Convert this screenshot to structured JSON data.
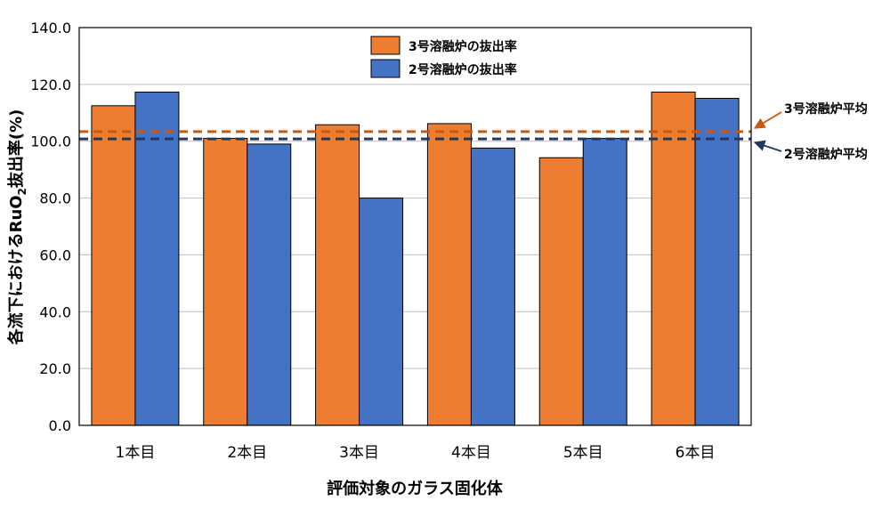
{
  "chart_data": {
    "type": "bar",
    "title": "",
    "xlabel": "評価対象のガラス固化体",
    "ylabel_parts": {
      "before": "各流下におけるRuO",
      "subscript": "2",
      "after": "抜出率(%)"
    },
    "ylim": [
      0,
      140
    ],
    "yticks": [
      0,
      20,
      40,
      60,
      80,
      100,
      120,
      140
    ],
    "ytick_labels": [
      "0.0",
      "20.0",
      "40.0",
      "60.0",
      "80.0",
      "100.0",
      "120.0",
      "140.0"
    ],
    "grid": true,
    "legend_position": "top",
    "categories": [
      "1本目",
      "2本目",
      "3本目",
      "4本目",
      "5本目",
      "6本目"
    ],
    "series": [
      {
        "name": "3号溶融炉の抜出率",
        "color": "#ED7D31",
        "values": [
          112.5,
          101.0,
          105.8,
          106.2,
          94.2,
          117.3
        ]
      },
      {
        "name": "2号溶融炉の抜出率",
        "color": "#4472C4",
        "values": [
          117.3,
          99.0,
          80.0,
          97.6,
          101.0,
          115.1
        ]
      }
    ],
    "reference_lines": [
      {
        "label": "3号溶融炉平均",
        "value": 103.4,
        "color": "#C55A11",
        "style": "dashed"
      },
      {
        "label": "2号溶融炉平均",
        "value": 100.8,
        "color": "#203864",
        "style": "dashed"
      }
    ]
  }
}
